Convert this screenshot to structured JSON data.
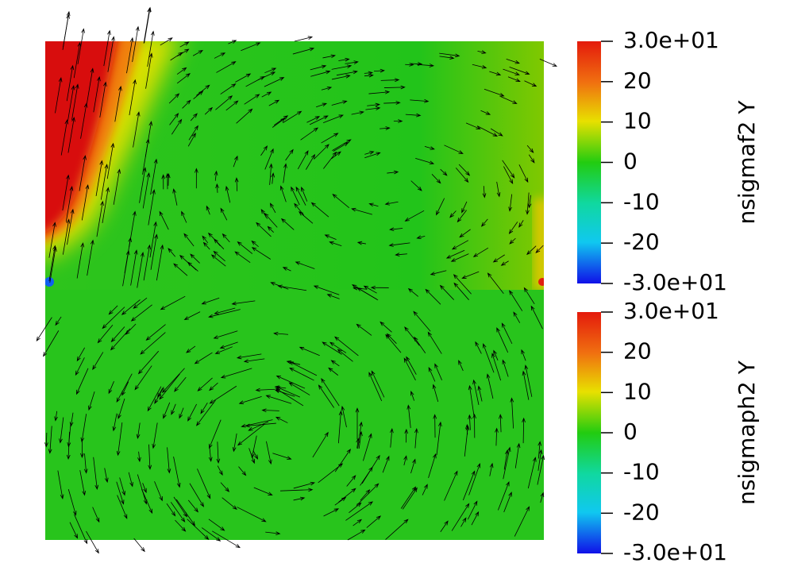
{
  "colorbars": [
    {
      "title": "nsigmaf2 Y",
      "labels": [
        "3.0e+01",
        "20",
        "10",
        "0",
        "-10",
        "-20",
        "-3.0e+01"
      ]
    },
    {
      "title": "nsigmaph2 Y",
      "labels": [
        "3.0e+01",
        "20",
        "10",
        "0",
        "-10",
        "-20",
        "-3.0e+01"
      ]
    }
  ]
}
